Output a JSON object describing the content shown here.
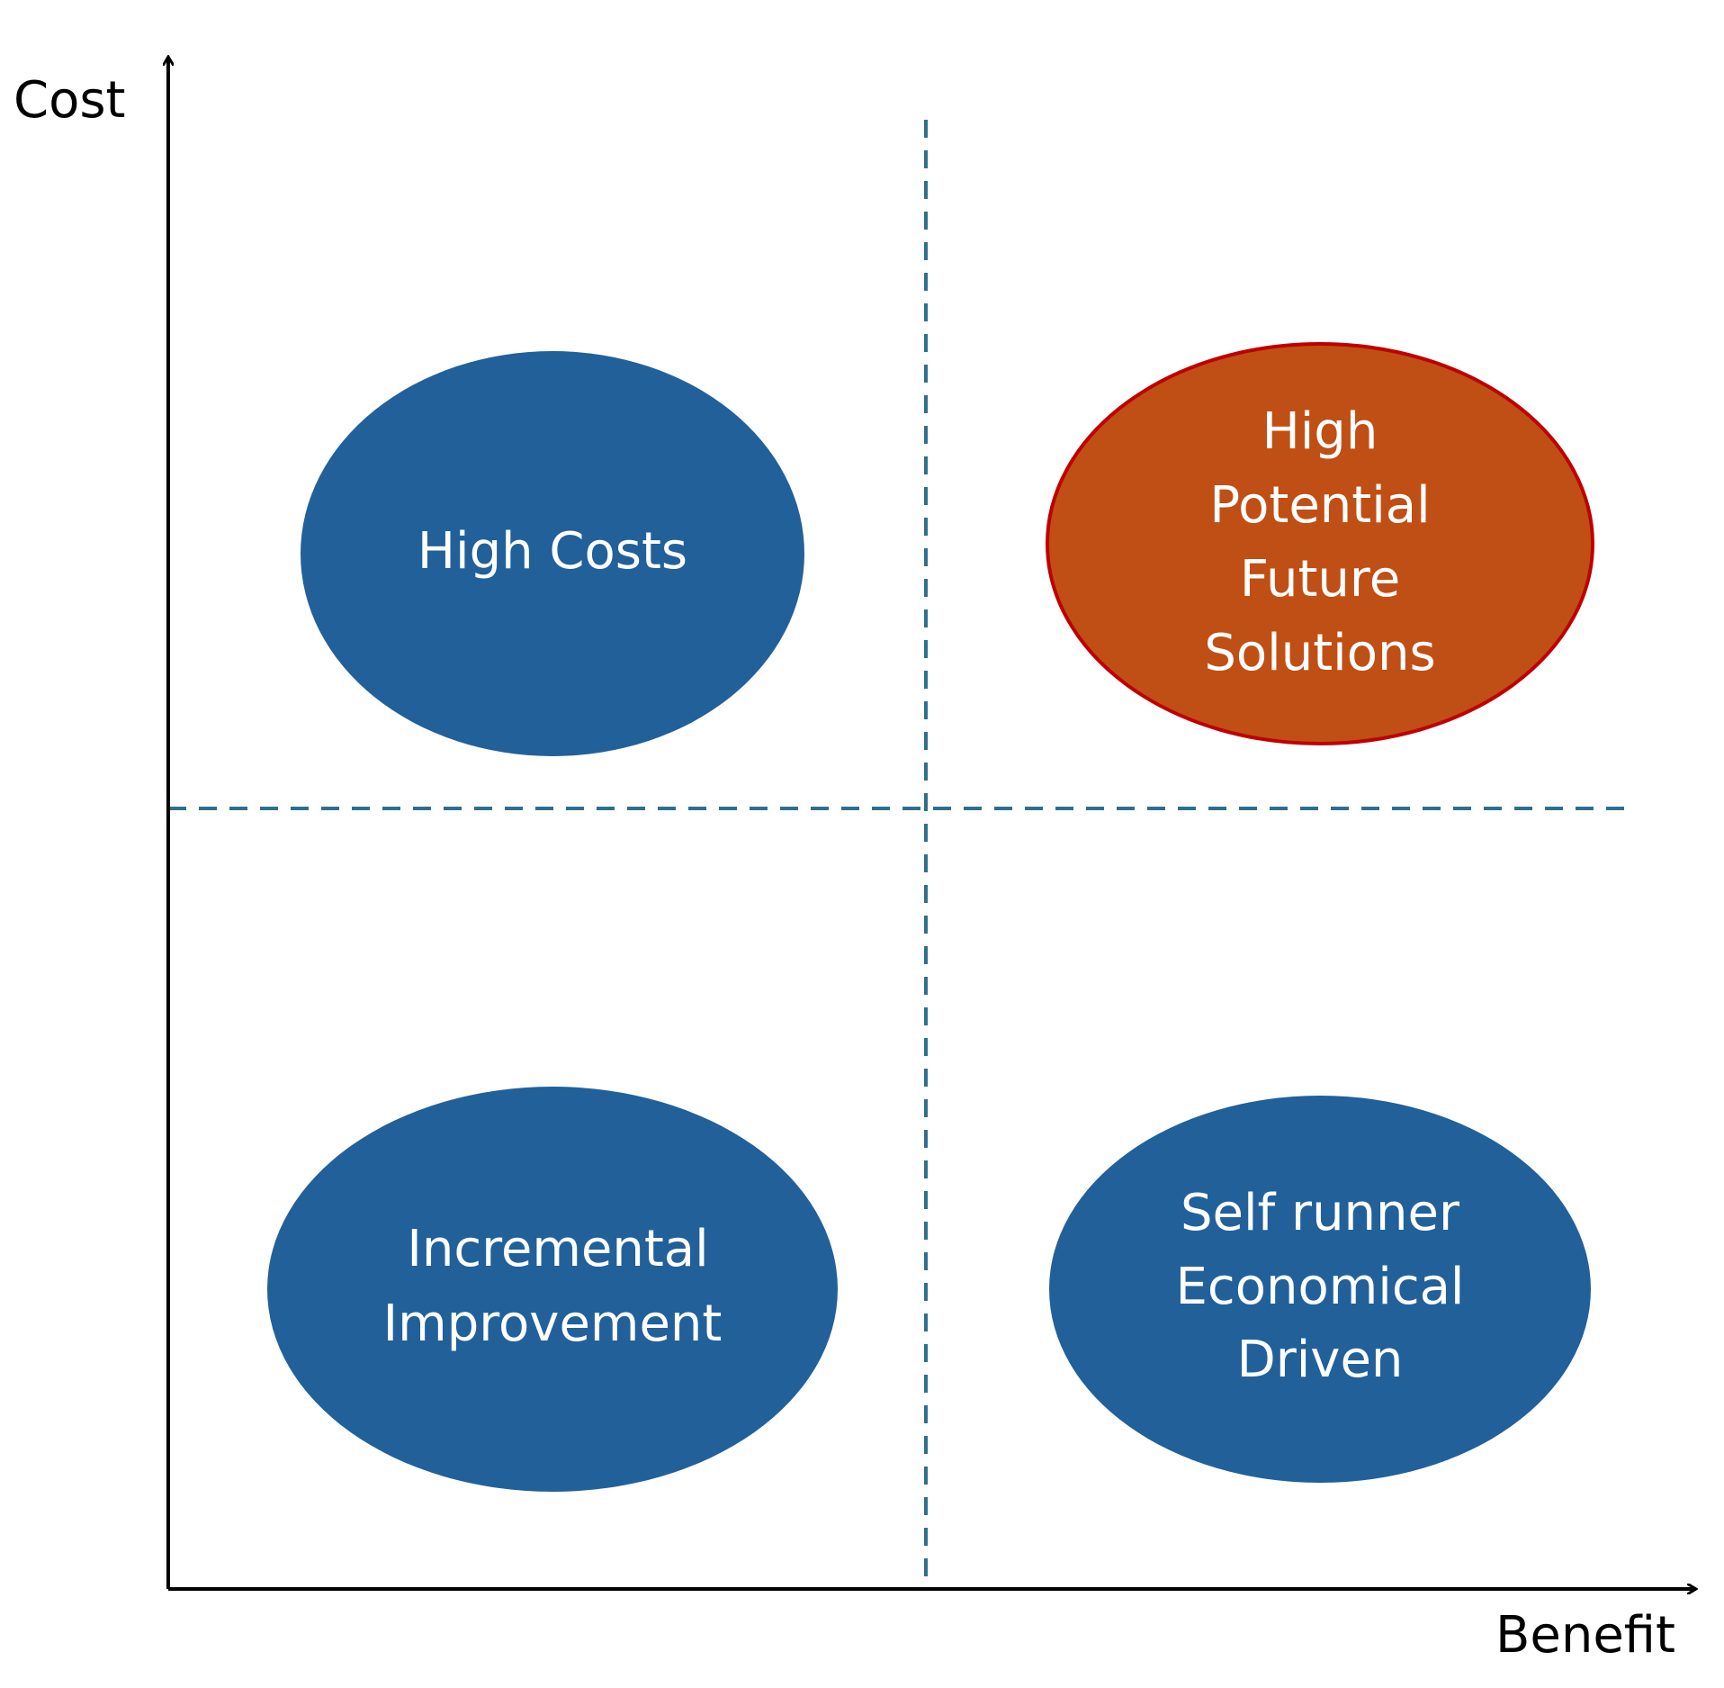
{
  "axes": {
    "y_label": "Cost",
    "x_label": "Benefit"
  },
  "quadrants": [
    {
      "lines": [
        "High Costs"
      ]
    },
    {
      "lines": [
        "High",
        "Potential",
        "Future",
        "Solutions"
      ]
    },
    {
      "lines": [
        "Incremental",
        "Improvement"
      ]
    },
    {
      "lines": [
        "Self runner",
        "Economical",
        "Driven"
      ]
    }
  ]
}
